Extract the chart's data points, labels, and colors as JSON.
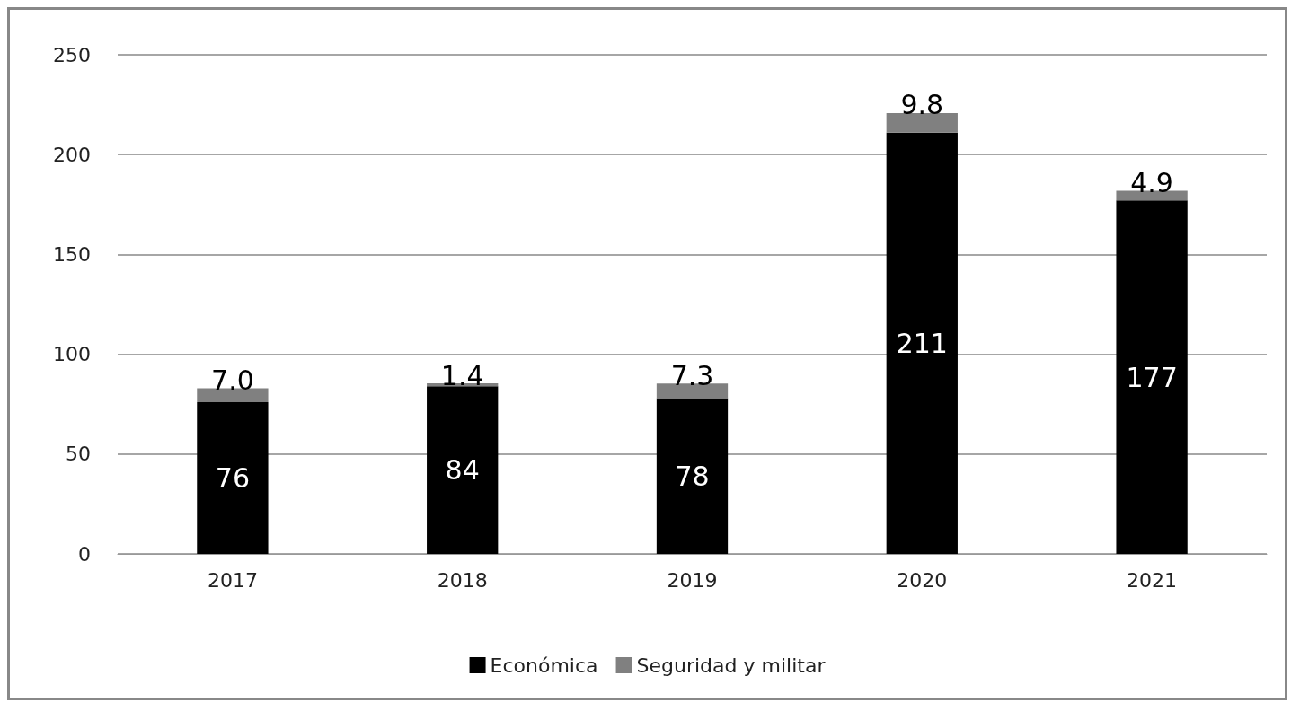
{
  "chart_data": {
    "type": "bar",
    "stacked": true,
    "categories": [
      "2017",
      "2018",
      "2019",
      "2020",
      "2021"
    ],
    "series": [
      {
        "name": "Económica",
        "color": "#000000",
        "values": [
          76,
          84,
          78,
          211,
          177
        ],
        "value_labels": [
          "76",
          "84",
          "78",
          "211",
          "177"
        ]
      },
      {
        "name": "Seguridad y militar",
        "color": "#808080",
        "values": [
          7.0,
          1.4,
          7.3,
          9.8,
          4.9
        ],
        "value_labels": [
          "7.0",
          "1.4",
          "7.3",
          "9.8",
          "4.9"
        ]
      }
    ],
    "ylim": [
      0,
      250
    ],
    "yticks": [
      0,
      50,
      100,
      150,
      200,
      250
    ],
    "grid": "y",
    "legend": "bottom"
  }
}
